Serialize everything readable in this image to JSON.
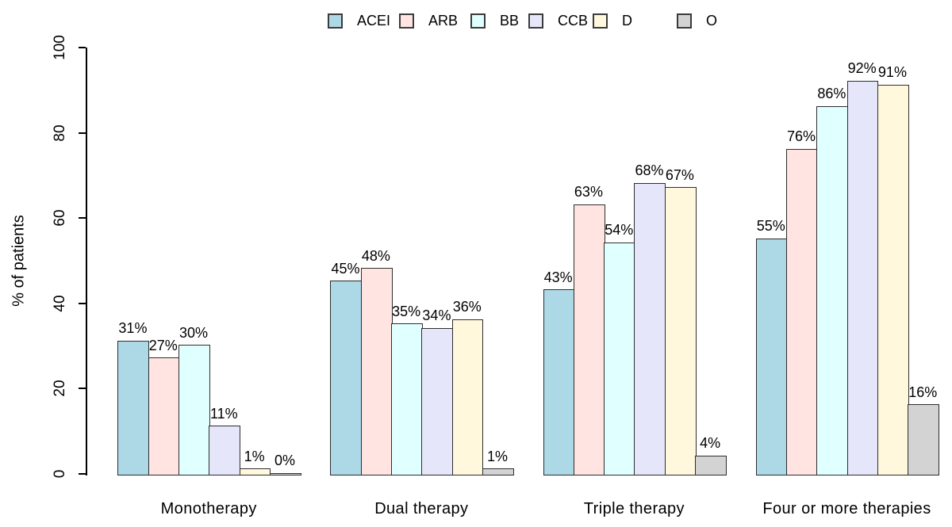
{
  "chart_data": {
    "type": "bar",
    "title": "",
    "xlabel": "",
    "ylabel": "% of patients",
    "ylim": [
      0,
      100
    ],
    "yticks": [
      0,
      20,
      40,
      60,
      80,
      100
    ],
    "grid": false,
    "legend_position": "top-center",
    "value_label_format": "{v}%",
    "categories": [
      "Monotherapy",
      "Dual therapy",
      "Triple therapy",
      "Four or more therapies"
    ],
    "series": [
      {
        "name": "ACEI",
        "color": "#ADD8E6",
        "values": [
          31,
          45,
          43,
          55
        ]
      },
      {
        "name": "ARB",
        "color": "#FFE4E1",
        "values": [
          27,
          48,
          63,
          76
        ]
      },
      {
        "name": "BB",
        "color": "#E0FFFF",
        "values": [
          30,
          35,
          54,
          86
        ]
      },
      {
        "name": "CCB",
        "color": "#E6E6FA",
        "values": [
          11,
          34,
          68,
          92
        ]
      },
      {
        "name": "D",
        "color": "#FFF8DC",
        "values": [
          1,
          36,
          67,
          91
        ]
      },
      {
        "name": "O",
        "color": "#D3D3D3",
        "values": [
          0,
          1,
          4,
          16
        ]
      }
    ],
    "bar_border_color": "#2d2d2d",
    "axis_color": "#000000"
  }
}
